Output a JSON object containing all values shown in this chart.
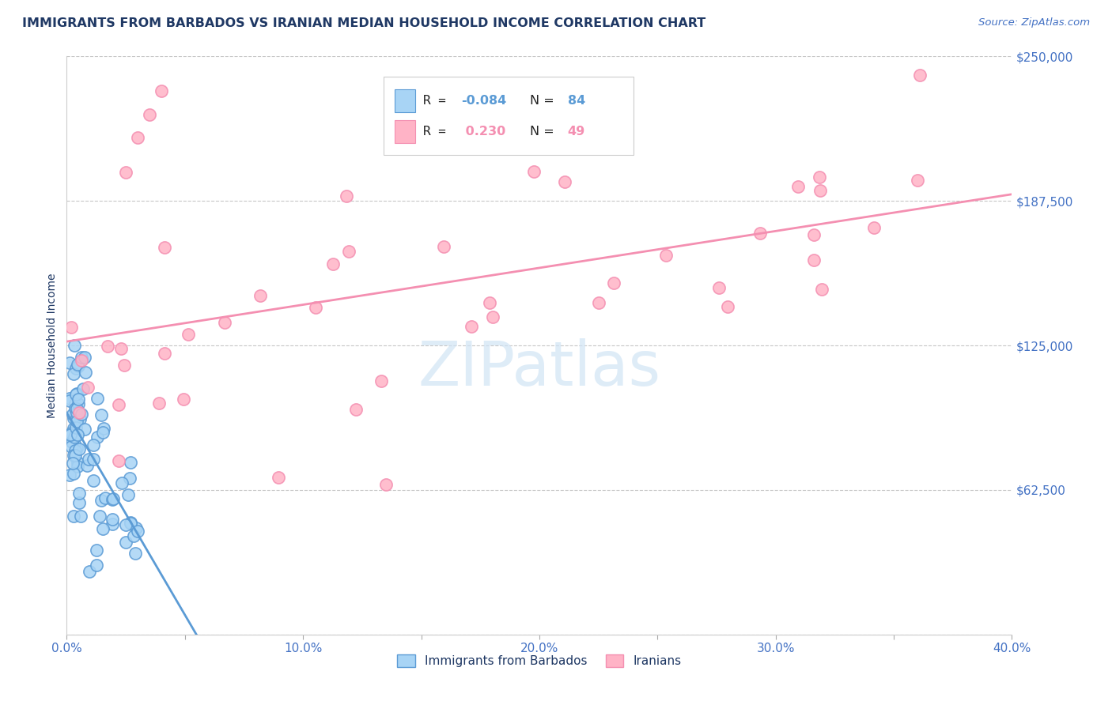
{
  "title": "IMMIGRANTS FROM BARBADOS VS IRANIAN MEDIAN HOUSEHOLD INCOME CORRELATION CHART",
  "source_text": "Source: ZipAtlas.com",
  "ylabel": "Median Household Income",
  "xmin": 0.0,
  "xmax": 0.4,
  "ymin": 0,
  "ymax": 250000,
  "yticks": [
    0,
    62500,
    125000,
    187500,
    250000
  ],
  "ytick_labels": [
    "",
    "$62,500",
    "$125,000",
    "$187,500",
    "$250,000"
  ],
  "xtick_labels": [
    "0.0%",
    "",
    "10.0%",
    "",
    "20.0%",
    "",
    "30.0%",
    "",
    "40.0%"
  ],
  "xticks": [
    0.0,
    0.05,
    0.1,
    0.15,
    0.2,
    0.25,
    0.3,
    0.35,
    0.4
  ],
  "barbados_color": "#a8d4f5",
  "barbados_edge_color": "#5b9bd5",
  "iranian_color": "#ffb3c6",
  "iranian_edge_color": "#f48fb1",
  "title_color": "#1f3864",
  "tick_color": "#4472c4",
  "background_color": "#ffffff",
  "grid_color": "#b0b0b0",
  "watermark_color": "#d0e4f5",
  "source_color": "#4472c4"
}
